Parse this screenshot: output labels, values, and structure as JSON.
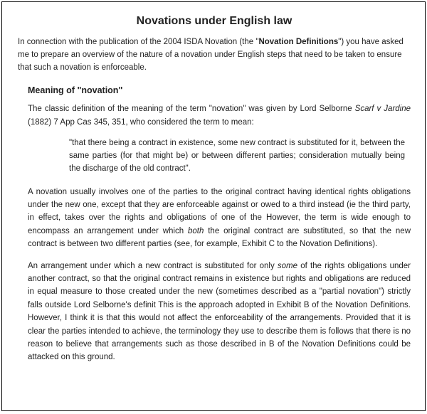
{
  "background_color": "#ffffff",
  "border_color": "#000000",
  "text_color": "#222222",
  "title": "Novations under English law",
  "intro_pre": "In connection with the publication of the 2004 ISDA Novation (the \"",
  "intro_bold": "Novation Definitions",
  "intro_post": "\") you have asked me to prepare an overview of the nature of a novation under English steps that need to be taken to ensure that such a novation is enforceable.",
  "subhead": "Meaning of \"novation\"",
  "p1_pre": "The classic definition of the meaning of the term \"novation\" was given by Lord Selborne ",
  "p1_case": "Scarf v Jardine",
  "p1_post": " (1882) 7 App Cas 345, 351, who considered the term to mean:",
  "quote": "\"that there being a contract in existence, some new contract is substituted for it, between the same parties (for that might be) or between different parties; consideration mutually being the discharge of the old contract\".",
  "p2_pre": "A novation usually involves one of the parties to the original contract having identical rights obligations under the new one, except that they are enforceable against or owed to a third instead (ie the third party, in effect, takes over the rights and obligations of one of the However, the term is wide enough to encompass an arrangement under which ",
  "p2_italic": "both",
  "p2_post": " the original contract are substituted, so that the new contract is between two different parties (see, for example, Exhibit C to the Novation Definitions).",
  "p3_pre": "An arrangement under which a new contract is substituted for only ",
  "p3_italic": "some",
  "p3_post": " of the rights obligations under another contract, so that the original contract remains in existence but rights and obligations are reduced in equal measure to those created under the new (sometimes described as a \"partial novation\") strictly falls outside Lord Selborne's definit This is the approach adopted in Exhibit B of the Novation Definitions. However, I think it is that this would not affect the enforceability of the arrangements. Provided that it is clear the parties intended to achieve, the terminology they use to describe them is follows that there is no reason to believe that arrangements such as those described in B of the Novation Definitions could be attacked on this ground."
}
